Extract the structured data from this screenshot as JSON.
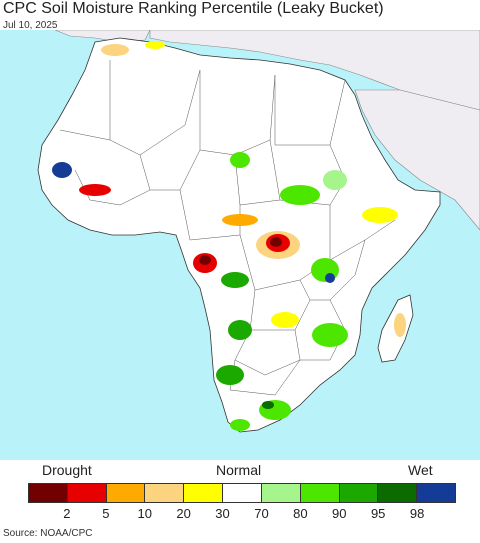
{
  "header": {
    "title": "CPC Soil Moisture Ranking Percentile (Leaky Bucket)",
    "date": "Jul 10, 2025"
  },
  "legend": {
    "left_label": "Drought",
    "center_label": "Normal",
    "right_label": "Wet",
    "colors": [
      "#730000",
      "#e60000",
      "#ffaa00",
      "#fcd37f",
      "#ffff00",
      "#ffffff",
      "#a5f58c",
      "#4ce600",
      "#1ba900",
      "#0b6b00",
      "#143c96"
    ],
    "ticks": [
      "2",
      "5",
      "10",
      "20",
      "30",
      "70",
      "80",
      "90",
      "95",
      "98"
    ]
  },
  "map": {
    "ocean_color": "#b9f2f8",
    "land_color": "#ffffff",
    "outside_color": "#f0edf2",
    "region": "Africa"
  },
  "footer": {
    "source": "Source: NOAA/CPC"
  }
}
